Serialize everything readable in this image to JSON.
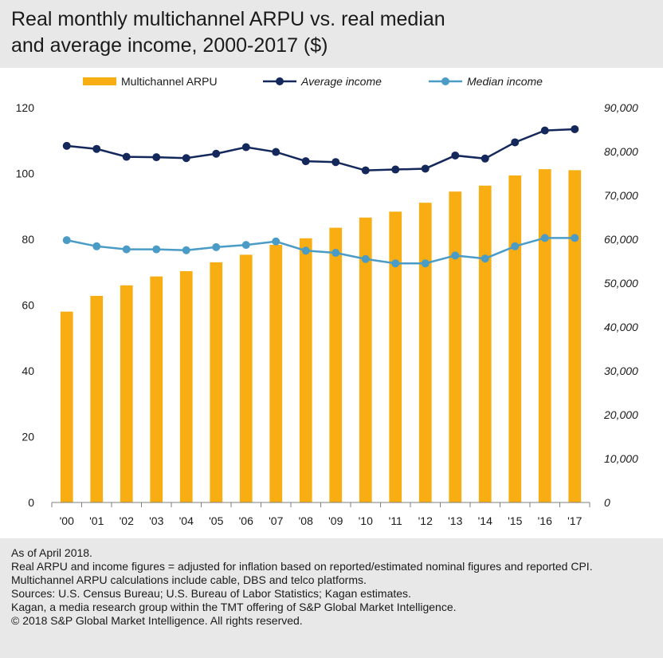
{
  "title": {
    "line1": "Real monthly multichannel ARPU vs. real median",
    "line2": "and average income, 2000-2017 ($)"
  },
  "chart_data": {
    "type": "bar",
    "categories": [
      "'00",
      "'01",
      "'02",
      "'03",
      "'04",
      "'05",
      "'06",
      "'07",
      "'08",
      "'09",
      "'10",
      "'11",
      "'12",
      "'13",
      "'14",
      "'15",
      "'16",
      "'17"
    ],
    "series": [
      {
        "name": "Multichannel ARPU",
        "type": "bar",
        "axis": "left",
        "color": "#f8ad12",
        "values": [
          58,
          62.8,
          66,
          68.7,
          70.3,
          73,
          75.3,
          78.3,
          80.3,
          83.5,
          86.6,
          88.4,
          91.1,
          94.5,
          96.3,
          99.4,
          101.3,
          101
        ]
      },
      {
        "name": "Average income",
        "type": "line",
        "axis": "right",
        "color": "#14285c",
        "values": [
          81300,
          80600,
          78800,
          78700,
          78500,
          79500,
          81000,
          79900,
          77800,
          77600,
          75700,
          75900,
          76100,
          79100,
          78400,
          82100,
          84800,
          85100
        ]
      },
      {
        "name": "Median income",
        "type": "line",
        "axis": "right",
        "color": "#4a9cc7",
        "values": [
          59800,
          58400,
          57700,
          57700,
          57500,
          58200,
          58700,
          59500,
          57400,
          56900,
          55500,
          54500,
          54500,
          56300,
          55600,
          58400,
          60300,
          60300
        ]
      }
    ],
    "y_left": {
      "min": 0,
      "max": 120,
      "ticks": [
        "0",
        "20",
        "40",
        "60",
        "80",
        "100",
        "120"
      ]
    },
    "y_right": {
      "min": 0,
      "max": 90000,
      "ticks": [
        "0",
        "10,000",
        "20,000",
        "30,000",
        "40,000",
        "50,000",
        "60,000",
        "70,000",
        "80,000",
        "90,000"
      ]
    },
    "legend": [
      "Multichannel ARPU",
      "Average income",
      "Median income"
    ],
    "legend_position": "top",
    "grid": false
  },
  "notes": [
    "As of April 2018.",
    "Real ARPU and income figures = adjusted for inflation based on reported/estimated nominal figures and reported CPI.",
    "Multichannel ARPU calculations include cable, DBS and telco platforms.",
    "Sources: U.S. Census Bureau; U.S. Bureau of Labor Statistics; Kagan estimates.",
    "Kagan, a media research group within the TMT offering of S&P Global Market Intelligence.",
    "© 2018 S&P Global Market Intelligence. All rights reserved."
  ]
}
